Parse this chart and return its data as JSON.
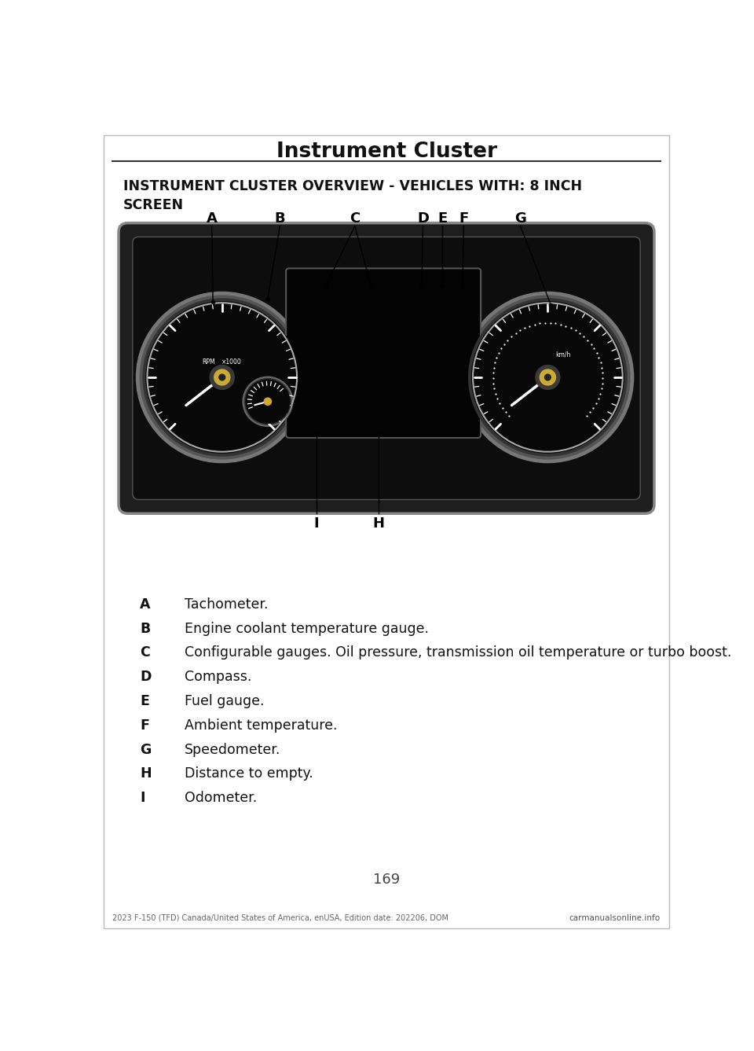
{
  "page_title": "Instrument Cluster",
  "section_title": "INSTRUMENT CLUSTER OVERVIEW - VEHICLES WITH: 8 INCH\nSCREEN",
  "page_number": "169",
  "footer_left": "2023 F-150 (TFD) Canada/United States of America, enUSA, Edition date: 202206, DOM",
  "footer_right": "carmanualsonline.info",
  "bg_color": "#ffffff",
  "label_items": [
    {
      "letter": "A",
      "description": "Tachometer."
    },
    {
      "letter": "B",
      "description": "Engine coolant temperature gauge."
    },
    {
      "letter": "C",
      "description": "Configurable gauges. Oil pressure, transmission oil temperature or turbo boost."
    },
    {
      "letter": "D",
      "description": "Compass."
    },
    {
      "letter": "E",
      "description": "Fuel gauge."
    },
    {
      "letter": "F",
      "description": "Ambient temperature."
    },
    {
      "letter": "G",
      "description": "Speedometer."
    },
    {
      "letter": "H",
      "description": "Distance to empty."
    },
    {
      "letter": "I",
      "description": "Odometer."
    }
  ]
}
